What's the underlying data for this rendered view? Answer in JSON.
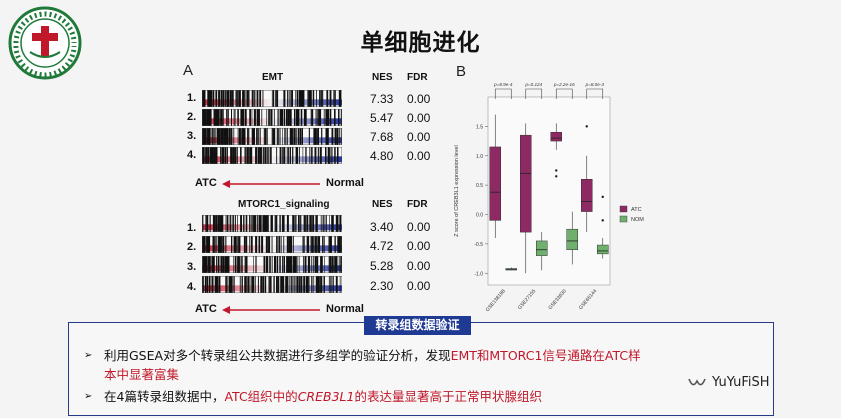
{
  "slide": {
    "title": "单细胞进化",
    "accent_color": "#1f3a93",
    "highlight_color": "#c0182a"
  },
  "logo": {
    "icon": "university-seal-logo"
  },
  "panel_a": {
    "letter": "A",
    "col_nes": "NES",
    "col_fdr": "FDR",
    "sets": [
      {
        "name": "EMT",
        "rows": [
          {
            "num": "1.",
            "nes": "7.33",
            "fdr": "0.00"
          },
          {
            "num": "2.",
            "nes": "5.47",
            "fdr": "0.00"
          },
          {
            "num": "3.",
            "nes": "7.68",
            "fdr": "0.00"
          },
          {
            "num": "4.",
            "nes": "4.80",
            "fdr": "0.00"
          }
        ],
        "left_label": "ATC",
        "right_label": "Normal"
      },
      {
        "name": "MTORC1_signaling",
        "rows": [
          {
            "num": "1.",
            "nes": "3.40",
            "fdr": "0.00"
          },
          {
            "num": "2.",
            "nes": "4.72",
            "fdr": "0.00"
          },
          {
            "num": "3.",
            "nes": "5.28",
            "fdr": "0.00"
          },
          {
            "num": "4.",
            "nes": "2.30",
            "fdr": "0.00"
          }
        ],
        "left_label": "ATC",
        "right_label": "Normal"
      }
    ]
  },
  "chart_data": {
    "type": "box",
    "letter": "B",
    "ylabel": "Z score of CREB3L1 expression level",
    "ylim": [
      -1.2,
      2.0
    ],
    "yticks": [
      "-1.0",
      "-0.5",
      "0.0",
      "0.5",
      "1.0",
      "1.5"
    ],
    "categories": [
      "GSE138198",
      "GSE27155",
      "GSE33630",
      "GSE65144"
    ],
    "pvalues": [
      "p=8.9e-4",
      "p=0.124",
      "p=2.2e-16",
      "p=8.0e-3"
    ],
    "legend": [
      "ATC",
      "NOM"
    ],
    "colors": {
      "ATC": "#8e2a63",
      "NOM": "#6fb06f"
    },
    "series": [
      {
        "name": "ATC",
        "boxes": [
          {
            "min": -0.4,
            "q1": -0.1,
            "median": 0.38,
            "q3": 1.15,
            "max": 1.7
          },
          {
            "min": -1.0,
            "q1": -0.3,
            "median": 0.7,
            "q3": 1.35,
            "max": 1.55
          },
          {
            "min": 1.1,
            "q1": 1.25,
            "median": 1.3,
            "q3": 1.4,
            "max": 1.55,
            "outliers": [
              0.75,
              0.65
            ]
          },
          {
            "min": -0.3,
            "q1": 0.05,
            "median": 0.22,
            "q3": 0.6,
            "max": 1.0,
            "outliers": [
              1.5
            ]
          }
        ]
      },
      {
        "name": "NOM",
        "boxes": [
          {
            "min": -0.95,
            "q1": -0.93,
            "median": -0.93,
            "q3": -0.92,
            "max": -0.9
          },
          {
            "min": -0.95,
            "q1": -0.7,
            "median": -0.6,
            "q3": -0.45,
            "max": -0.3
          },
          {
            "min": -0.85,
            "q1": -0.6,
            "median": -0.45,
            "q3": -0.25,
            "max": 0.05
          },
          {
            "min": -0.75,
            "q1": -0.67,
            "median": -0.62,
            "q3": -0.52,
            "max": -0.4,
            "outliers": [
              0.3,
              -0.1
            ]
          }
        ]
      }
    ]
  },
  "box": {
    "tab_label": "转录组数据验证",
    "bullet1_plain": "利用GSEA对多个转录组公共数据进行多组学的验证分析，发现",
    "bullet1_red": "EMT和MTORC1信号通路在ATC样",
    "bullet1_line2_red": "本中显著富集",
    "bullet2_plain": "在4篇转录组数据中，",
    "bullet2_red_a": "ATC组织中的",
    "bullet2_red_ital": "CREB3L1",
    "bullet2_red_b": "的表达量显著高于正常甲状腺组织",
    "bullet_mark": "➢"
  },
  "watermark": {
    "text": "YuYuFiSH",
    "icon": "wechat-channel-icon"
  }
}
